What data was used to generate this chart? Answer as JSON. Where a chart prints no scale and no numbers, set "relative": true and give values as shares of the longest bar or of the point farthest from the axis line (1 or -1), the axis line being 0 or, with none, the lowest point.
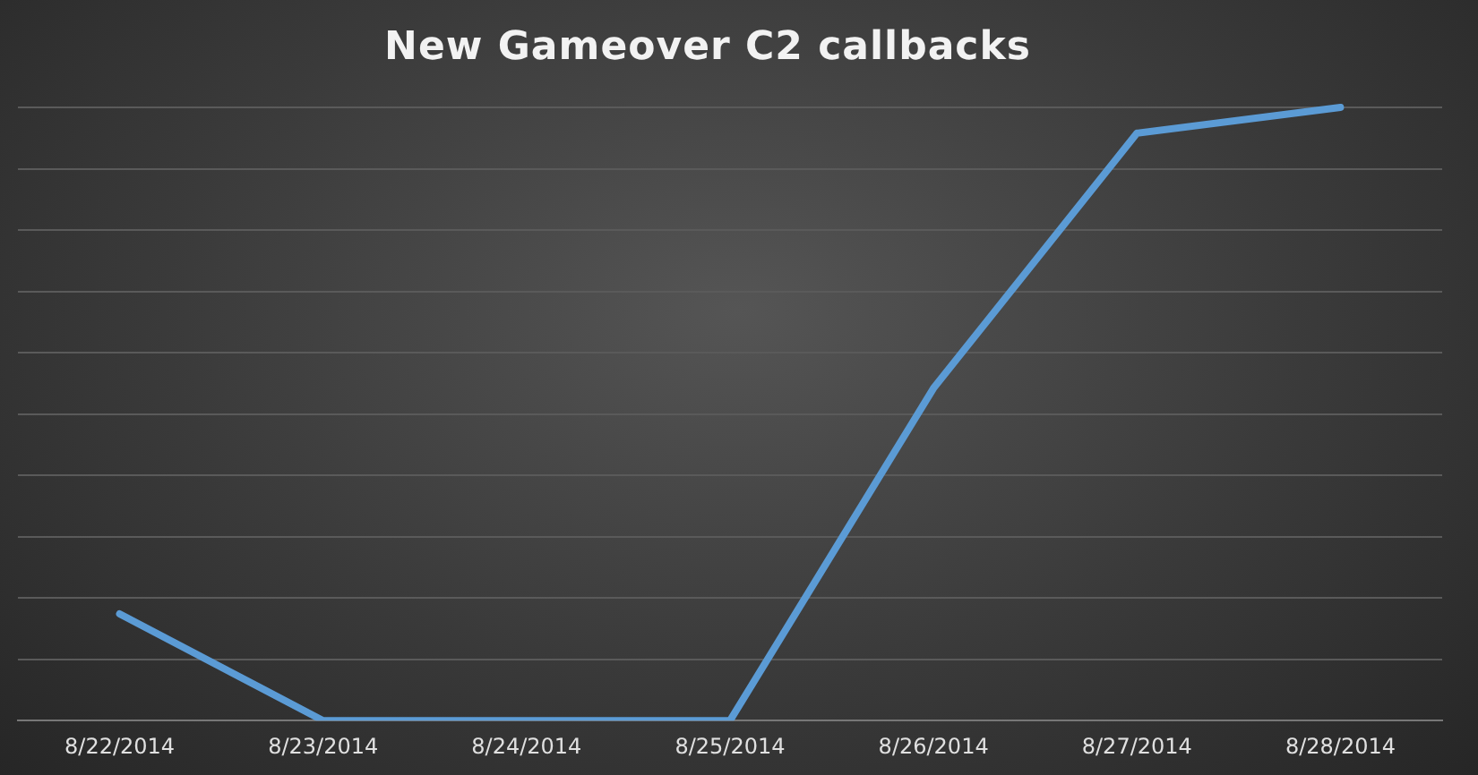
{
  "chart_data": {
    "type": "line",
    "title": "New Gameover C2 callbacks",
    "relative": true,
    "categories": [
      "8/22/2014",
      "8/23/2014",
      "8/24/2014",
      "8/25/2014",
      "8/26/2014",
      "8/27/2014",
      "8/28/2014"
    ],
    "series": [
      {
        "color": "#5b9bd5",
        "values": [
          0.174,
          0,
          0,
          0,
          0.542,
          0.958,
          1
        ]
      }
    ],
    "grid": "y",
    "legend": false,
    "marker": "none",
    "line_style": "solid"
  }
}
